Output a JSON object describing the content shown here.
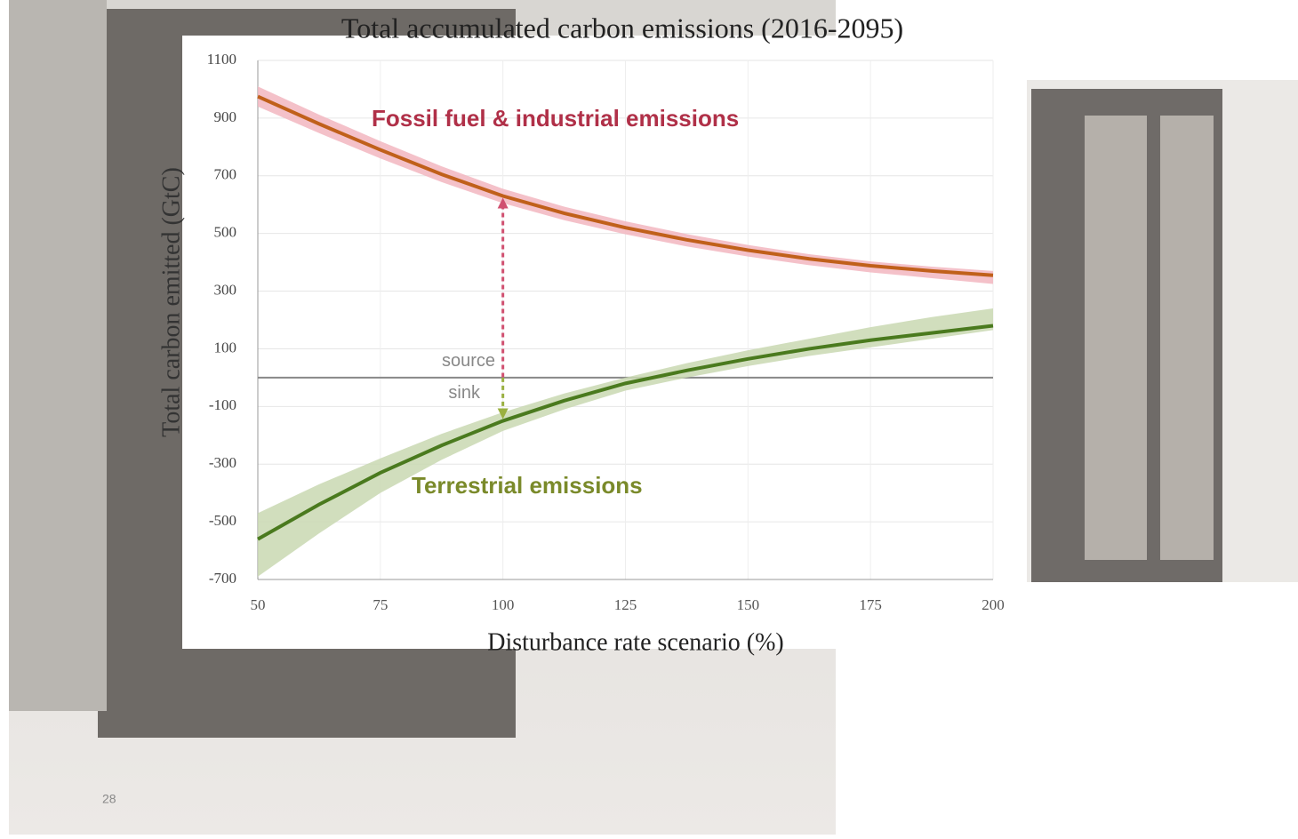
{
  "chart_data": {
    "type": "line",
    "title": "Total accumulated carbon emissions (2016-2095)",
    "x_label": "Disturbance rate scenario (%)",
    "y_label": "Total carbon emitted (GtC)",
    "x": [
      50,
      62.5,
      75,
      87.5,
      100,
      112.5,
      125,
      137.5,
      150,
      162.5,
      175,
      187.5,
      200
    ],
    "series": [
      {
        "name": "Fossil fuel & industrial emissions",
        "color": "#c0601a",
        "band_color": "#f2b6c0",
        "label_color": "#b03048",
        "values": [
          975,
          880,
          790,
          705,
          630,
          570,
          520,
          478,
          442,
          412,
          388,
          370,
          355
        ],
        "upper": [
          1010,
          912,
          820,
          733,
          655,
          593,
          542,
          498,
          460,
          428,
          403,
          385,
          370
        ],
        "lower": [
          940,
          848,
          760,
          678,
          605,
          546,
          497,
          455,
          420,
          390,
          365,
          345,
          325
        ]
      },
      {
        "name": "Terrestrial emissions",
        "color": "#4a7a1e",
        "band_color": "#c9d8b2",
        "label_color": "#7a8a2a",
        "values": [
          -560,
          -440,
          -330,
          -235,
          -150,
          -80,
          -20,
          25,
          65,
          100,
          130,
          155,
          180
        ],
        "upper": [
          -470,
          -370,
          -280,
          -195,
          -120,
          -55,
          0,
          50,
          95,
          135,
          175,
          210,
          240
        ],
        "lower": [
          -690,
          -540,
          -400,
          -285,
          -185,
          -110,
          -45,
          0,
          40,
          75,
          105,
          135,
          165
        ]
      }
    ],
    "annotations": {
      "source": "source",
      "sink": "sink"
    },
    "xlim": [
      50,
      200
    ],
    "xticks": [
      50,
      75,
      100,
      125,
      150,
      175,
      200
    ],
    "ylim": [
      -700,
      1100
    ],
    "yticks": [
      -700,
      -500,
      -300,
      -100,
      100,
      300,
      500,
      700,
      900,
      1100
    ],
    "grid": true,
    "page_number": "28"
  }
}
